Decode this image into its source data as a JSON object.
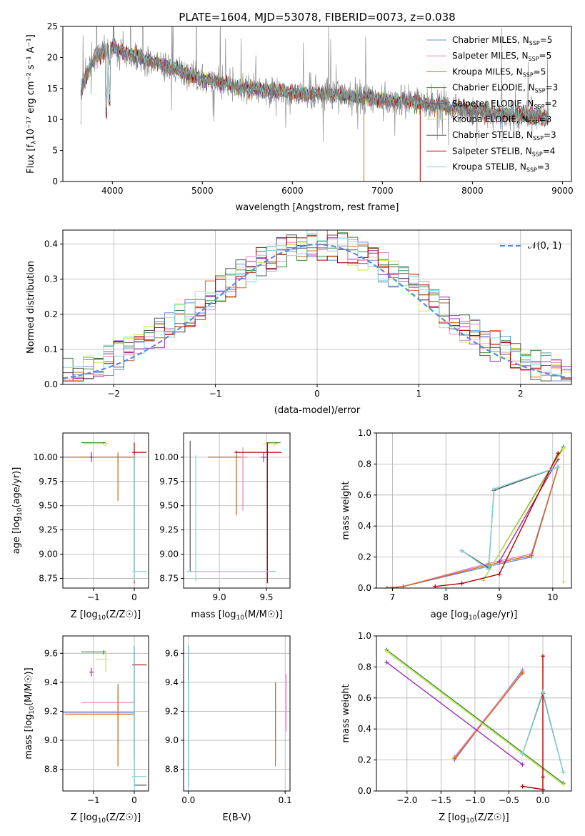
{
  "figure": {
    "title": "PLATE=1604, MJD=53078, FIBERID=0073, z=0.038"
  },
  "colors": {
    "chabrier_miles": "#6b8fd6",
    "salpeter_miles": "#e885c0",
    "kroupa_miles": "#d2691e",
    "chabrier_elodie": "#3a8a3a",
    "salpeter_elodie": "#9b2fae",
    "kroupa_elodie": "#c8e64a",
    "chabrier_stelib": "#555555",
    "salpeter_stelib": "#b00000",
    "kroupa_stelib": "#7fd6d6",
    "data": "#808080",
    "gaussian": "#5b8bd9"
  },
  "legend": {
    "items": [
      {
        "label": "Chabrier MILES, N",
        "sub": "SSP",
        "suffix": "=5",
        "color_key": "chabrier_miles"
      },
      {
        "label": "Salpeter MILES, N",
        "sub": "SSP",
        "suffix": "=5",
        "color_key": "salpeter_miles"
      },
      {
        "label": "Kroupa MILES, N",
        "sub": "SSP",
        "suffix": "=5",
        "color_key": "kroupa_miles"
      },
      {
        "label": "Chabrier ELODIE, N",
        "sub": "SSP",
        "suffix": "=3",
        "color_key": "chabrier_elodie"
      },
      {
        "label": "Salpeter ELODIE, N",
        "sub": "SSP",
        "suffix": "=2",
        "color_key": "salpeter_elodie"
      },
      {
        "label": "Kroupa ELODIE, N",
        "sub": "SSP",
        "suffix": "=3",
        "color_key": "kroupa_elodie"
      },
      {
        "label": "Chabrier STELIB, N",
        "sub": "SSP",
        "suffix": "=3",
        "color_key": "chabrier_stelib"
      },
      {
        "label": "Salpeter STELIB, N",
        "sub": "SSP",
        "suffix": "=4",
        "color_key": "salpeter_stelib"
      },
      {
        "label": "Kroupa STELIB, N",
        "sub": "SSP",
        "suffix": "=3",
        "color_key": "kroupa_stelib"
      }
    ],
    "gaussian_label": "𝒩(0, 1)"
  },
  "chart_data": [
    {
      "id": "spectrum",
      "type": "line",
      "xlabel": "wavelength [Angstrom, rest frame]",
      "ylabel_main": "Flux [f",
      "ylabel_sub": "λ",
      "ylabel_rest": "10⁻¹⁷ erg cm⁻² s⁻¹ A⁻¹]",
      "xlim": [
        3450,
        9100
      ],
      "ylim": [
        0,
        25
      ],
      "xticks": [
        "4000",
        "5000",
        "6000",
        "7000",
        "8000",
        "9000"
      ],
      "yticks": [
        "0",
        "5",
        "10",
        "15",
        "20",
        "25"
      ],
      "continuum": [
        [
          3650,
          14.5
        ],
        [
          3700,
          16.5
        ],
        [
          3800,
          20
        ],
        [
          3900,
          21
        ],
        [
          4000,
          21.5
        ],
        [
          4200,
          20.5
        ],
        [
          4500,
          19
        ],
        [
          5000,
          16.5
        ],
        [
          5500,
          15
        ],
        [
          6000,
          14.3
        ],
        [
          6500,
          14
        ],
        [
          7000,
          13.3
        ],
        [
          7500,
          12.5
        ],
        [
          8000,
          11.5
        ],
        [
          8500,
          10.8
        ],
        [
          8850,
          10.3
        ]
      ],
      "grid": false
    },
    {
      "id": "residuals",
      "type": "histogram",
      "xlabel": "(data-model)/error",
      "ylabel": "Normed distribution",
      "xlim": [
        -2.5,
        2.5
      ],
      "ylim": [
        0,
        0.44
      ],
      "xticks": [
        "−2",
        "−1",
        "0",
        "1",
        "2"
      ],
      "yticks": [
        "0.0",
        "0.1",
        "0.2",
        "0.3",
        "0.4"
      ],
      "bin_width": 0.1,
      "gaussian": {
        "mean": 0,
        "sigma": 1
      },
      "grid": true
    },
    {
      "id": "age_vs_Z",
      "type": "errorbar",
      "xlabel_main": "Z [log",
      "xlabel_sub": "10",
      "xlabel_rest": "(Z/Z☉)]",
      "ylabel_main": "age  [log",
      "ylabel_sub": "10",
      "ylabel_rest": "(age/yr)]",
      "xlim": [
        -1.75,
        0.35
      ],
      "ylim": [
        8.65,
        10.25
      ],
      "xticks": [
        "−1",
        "0"
      ],
      "yticks": [
        "8.75",
        "9.00",
        "9.25",
        "9.50",
        "9.75",
        "10.00"
      ],
      "points": [
        {
          "k": "chabrier_miles",
          "x": -0.4,
          "y": 10.0,
          "xerr": [
            1.35,
            0.4
          ],
          "yerr": [
            0.06,
            0.03
          ]
        },
        {
          "k": "salpeter_miles",
          "x": -1.05,
          "y": 10.0,
          "xerr": [
            0.3,
            1.1
          ],
          "yerr": [
            0.05,
            0.06
          ]
        },
        {
          "k": "kroupa_miles",
          "x": -0.4,
          "y": 10.0,
          "xerr": [
            1.3,
            0.4
          ],
          "yerr": [
            0.45,
            0.05
          ]
        },
        {
          "k": "chabrier_elodie",
          "x": -0.75,
          "y": 10.15,
          "xerr": [
            0.55,
            0.05
          ],
          "yerr": [
            0.02,
            0.01
          ]
        },
        {
          "k": "salpeter_elodie",
          "x": -1.05,
          "y": 10.0,
          "xerr": [
            0.05,
            0.05
          ],
          "yerr": [
            0.05,
            0.05
          ]
        },
        {
          "k": "kroupa_elodie",
          "x": -0.7,
          "y": 10.14,
          "xerr": [
            0.55,
            0.05
          ],
          "yerr": [
            0.03,
            0.03
          ]
        },
        {
          "k": "chabrier_stelib",
          "x": 0.0,
          "y": 8.82,
          "xerr": [
            0.0,
            0.3
          ],
          "yerr": [
            0.0,
            1.2
          ]
        },
        {
          "k": "salpeter_stelib",
          "x": 0.0,
          "y": 10.05,
          "xerr": [
            0.05,
            0.3
          ],
          "yerr": [
            1.35,
            0.1
          ]
        },
        {
          "k": "kroupa_stelib",
          "x": 0.0,
          "y": 8.82,
          "xerr": [
            0.05,
            0.3
          ],
          "yerr": [
            0.1,
            1.2
          ]
        }
      ]
    },
    {
      "id": "age_vs_mass",
      "type": "errorbar",
      "xlabel_main": "mass [log",
      "xlabel_sub": "10",
      "xlabel_rest": "(M/M☉)]",
      "xlim": [
        8.62,
        9.75
      ],
      "ylim": [
        8.65,
        10.25
      ],
      "xticks": [
        "9.0",
        "9.5"
      ],
      "yticks": [
        "8.75",
        "9.00",
        "9.25",
        "9.50",
        "9.75",
        "10.00"
      ],
      "points": [
        {
          "k": "chabrier_miles",
          "x": 9.18,
          "y": 10.0,
          "xerr": [
            0.3,
            0.1
          ],
          "yerr": [
            0.6,
            0.07
          ]
        },
        {
          "k": "salpeter_miles",
          "x": 9.25,
          "y": 10.0,
          "xerr": [
            0.1,
            0.05
          ],
          "yerr": [
            0.55,
            0.1
          ]
        },
        {
          "k": "kroupa_miles",
          "x": 9.18,
          "y": 10.0,
          "xerr": [
            0.3,
            0.05
          ],
          "yerr": [
            0.6,
            0.07
          ]
        },
        {
          "k": "chabrier_elodie",
          "x": 9.6,
          "y": 10.15,
          "xerr": [
            0.1,
            0.05
          ],
          "yerr": [
            0.02,
            0.01
          ]
        },
        {
          "k": "salpeter_elodie",
          "x": 9.47,
          "y": 10.0,
          "xerr": [
            0.03,
            0.03
          ],
          "yerr": [
            0.05,
            0.05
          ]
        },
        {
          "k": "kroupa_elodie",
          "x": 9.58,
          "y": 10.14,
          "xerr": [
            0.12,
            0.05
          ],
          "yerr": [
            0.03,
            0.03
          ]
        },
        {
          "k": "chabrier_stelib",
          "x": 8.69,
          "y": 8.82,
          "xerr": [
            0.0,
            0.9
          ],
          "yerr": [
            0.0,
            1.35
          ]
        },
        {
          "k": "salpeter_stelib",
          "x": 9.51,
          "y": 10.05,
          "xerr": [
            0.35,
            0.15
          ],
          "yerr": [
            1.35,
            0.1
          ]
        },
        {
          "k": "kroupa_stelib",
          "x": 8.75,
          "y": 8.82,
          "xerr": [
            0.1,
            0.85
          ],
          "yerr": [
            0.1,
            1.2
          ]
        }
      ]
    },
    {
      "id": "weight_vs_age",
      "type": "line",
      "xlabel_main": "age  [log",
      "xlabel_sub": "10",
      "xlabel_rest": "(age/yr)]",
      "ylabel": "mass weight",
      "xlim": [
        6.7,
        10.35
      ],
      "ylim": [
        0,
        1
      ],
      "xticks": [
        "7",
        "8",
        "9",
        "10"
      ],
      "yticks": [
        "0.0",
        "0.2",
        "0.4",
        "0.6",
        "0.8",
        "1.0"
      ],
      "series": [
        {
          "k": "chabrier_miles",
          "x": [
            6.9,
            7.2,
            8.8,
            9.6,
            10.1
          ],
          "y": [
            0.0,
            0.01,
            0.14,
            0.2,
            0.78
          ]
        },
        {
          "k": "salpeter_miles",
          "x": [
            6.9,
            7.2,
            8.8,
            9.6,
            10.1
          ],
          "y": [
            0.0,
            0.01,
            0.16,
            0.22,
            0.78
          ]
        },
        {
          "k": "kroupa_miles",
          "x": [
            6.9,
            7.2,
            8.8,
            9.6,
            10.1
          ],
          "y": [
            0.0,
            0.01,
            0.15,
            0.21,
            0.78
          ]
        },
        {
          "k": "chabrier_elodie",
          "x": [
            8.7,
            10.2
          ],
          "y": [
            0.05,
            0.91
          ]
        },
        {
          "k": "salpeter_elodie",
          "x": [
            9.0,
            10.1
          ],
          "y": [
            0.17,
            0.83
          ]
        },
        {
          "k": "kroupa_elodie",
          "x": [
            8.7,
            10.2,
            10.2
          ],
          "y": [
            0.05,
            0.9,
            0.04
          ]
        },
        {
          "k": "chabrier_stelib",
          "x": [
            8.3,
            8.8,
            8.9,
            10.1
          ],
          "y": [
            0.24,
            0.13,
            0.63,
            0.78
          ]
        },
        {
          "k": "salpeter_stelib",
          "x": [
            7.8,
            8.3,
            9.0,
            10.1
          ],
          "y": [
            0.01,
            0.03,
            0.09,
            0.87
          ]
        },
        {
          "k": "kroupa_stelib",
          "x": [
            8.3,
            8.8,
            8.9,
            10.1
          ],
          "y": [
            0.24,
            0.12,
            0.64,
            0.78
          ]
        }
      ]
    },
    {
      "id": "mass_vs_Z",
      "type": "errorbar",
      "xlabel_main": "Z [log",
      "xlabel_sub": "10",
      "xlabel_rest": "(Z/Z☉)]",
      "ylabel_main": "mass [log",
      "ylabel_sub": "10",
      "ylabel_rest": "(M/M☉)]",
      "xlim": [
        -1.75,
        0.35
      ],
      "ylim": [
        8.65,
        9.72
      ],
      "xticks": [
        "−1",
        "0"
      ],
      "yticks": [
        "8.8",
        "9.0",
        "9.2",
        "9.4",
        "9.6"
      ],
      "points": [
        {
          "k": "chabrier_miles",
          "x": -0.4,
          "y": 9.19,
          "xerr": [
            1.35,
            0.4
          ],
          "yerr": [
            0.2,
            0.2
          ]
        },
        {
          "k": "salpeter_miles",
          "x": -0.4,
          "y": 9.26,
          "xerr": [
            0.9,
            0.4
          ],
          "yerr": [
            0.12,
            0.05
          ]
        },
        {
          "k": "kroupa_miles",
          "x": -0.4,
          "y": 9.18,
          "xerr": [
            1.3,
            0.4
          ],
          "yerr": [
            0.36,
            0.2
          ]
        },
        {
          "k": "chabrier_elodie",
          "x": -0.75,
          "y": 9.61,
          "xerr": [
            0.55,
            0.05
          ],
          "yerr": [
            0.02,
            0.01
          ]
        },
        {
          "k": "salpeter_elodie",
          "x": -1.05,
          "y": 9.47,
          "xerr": [
            0.05,
            0.05
          ],
          "yerr": [
            0.03,
            0.03
          ]
        },
        {
          "k": "kroupa_elodie",
          "x": -0.7,
          "y": 9.56,
          "xerr": [
            0.25,
            0.05
          ],
          "yerr": [
            0.09,
            0.06
          ]
        },
        {
          "k": "chabrier_stelib",
          "x": 0.0,
          "y": 8.69,
          "xerr": [
            0.0,
            0.3
          ],
          "yerr": [
            0.0,
            0.95
          ]
        },
        {
          "k": "salpeter_stelib",
          "x": 0.0,
          "y": 9.52,
          "xerr": [
            0.05,
            0.3
          ],
          "yerr": [
            0.65,
            0.13
          ]
        },
        {
          "k": "kroupa_stelib",
          "x": 0.0,
          "y": 8.75,
          "xerr": [
            0.05,
            0.3
          ],
          "yerr": [
            0.1,
            0.9
          ]
        }
      ]
    },
    {
      "id": "mass_vs_ebv",
      "type": "errorbar",
      "xlabel": "E(B-V)",
      "xlim": [
        -0.005,
        0.105
      ],
      "ylim": [
        8.65,
        9.72
      ],
      "xticks": [
        "0.0",
        "0.1"
      ],
      "yticks": [
        "8.8",
        "9.0",
        "9.2",
        "9.4",
        "9.6"
      ],
      "points": [
        {
          "k": "chabrier_miles",
          "x": 0.09,
          "y": 9.19,
          "xerr": [
            0,
            0
          ],
          "yerr": [
            0.2,
            0.2
          ]
        },
        {
          "k": "salpeter_miles",
          "x": 0.101,
          "y": 9.26,
          "xerr": [
            0,
            0
          ],
          "yerr": [
            0.2,
            0.2
          ]
        },
        {
          "k": "kroupa_miles",
          "x": 0.09,
          "y": 9.18,
          "xerr": [
            0,
            0
          ],
          "yerr": [
            0.36,
            0.22
          ]
        },
        {
          "k": "chabrier_elodie",
          "x": 0.0,
          "y": 9.61,
          "xerr": [
            0,
            0
          ],
          "yerr": [
            0.02,
            0.01
          ]
        },
        {
          "k": "salpeter_elodie",
          "x": 0.0,
          "y": 9.47,
          "xerr": [
            0,
            0
          ],
          "yerr": [
            0.03,
            0.03
          ]
        },
        {
          "k": "kroupa_elodie",
          "x": 0.0,
          "y": 9.56,
          "xerr": [
            0,
            0
          ],
          "yerr": [
            0.09,
            0.06
          ]
        },
        {
          "k": "chabrier_stelib",
          "x": 0.0,
          "y": 8.69,
          "xerr": [
            0,
            0
          ],
          "yerr": [
            0.0,
            0.95
          ]
        },
        {
          "k": "salpeter_stelib",
          "x": 0.0,
          "y": 9.52,
          "xerr": [
            0,
            0
          ],
          "yerr": [
            0.1,
            0.13
          ]
        },
        {
          "k": "kroupa_stelib",
          "x": 0.0,
          "y": 8.75,
          "xerr": [
            0,
            0
          ],
          "yerr": [
            0.1,
            0.9
          ]
        }
      ]
    },
    {
      "id": "weight_vs_Z",
      "type": "line",
      "xlabel_main": "Z [log",
      "xlabel_sub": "10",
      "xlabel_rest": "(Z/Z☉)]",
      "ylabel": "mass weight",
      "xlim": [
        -2.45,
        0.42
      ],
      "ylim": [
        0,
        1
      ],
      "xticks": [
        "−2.0",
        "−1.5",
        "−1.0",
        "−0.5",
        "0.0"
      ],
      "yticks": [
        "0.0",
        "0.2",
        "0.4",
        "0.6",
        "0.8",
        "1.0"
      ],
      "series": [
        {
          "k": "chabrier_miles",
          "x": [
            -1.3,
            -0.3
          ],
          "y": [
            0.2,
            0.78
          ]
        },
        {
          "k": "salpeter_miles",
          "x": [
            -1.3,
            -0.3
          ],
          "y": [
            0.22,
            0.77
          ]
        },
        {
          "k": "kroupa_miles",
          "x": [
            -1.3,
            -0.3
          ],
          "y": [
            0.21,
            0.76
          ]
        },
        {
          "k": "chabrier_elodie",
          "x": [
            -2.3,
            0.3
          ],
          "y": [
            0.91,
            0.05
          ]
        },
        {
          "k": "salpeter_elodie",
          "x": [
            -2.3,
            -0.3
          ],
          "y": [
            0.83,
            0.17
          ]
        },
        {
          "k": "kroupa_elodie",
          "x": [
            -2.3,
            0.3
          ],
          "y": [
            0.9,
            0.04
          ]
        },
        {
          "k": "chabrier_stelib",
          "x": [
            -0.3,
            0.0,
            0.3
          ],
          "y": [
            0.24,
            0.63,
            0.12
          ]
        },
        {
          "k": "salpeter_stelib",
          "x": [
            -0.3,
            0.0,
            0.0,
            0.0
          ],
          "y": [
            0.03,
            0.01,
            0.87,
            0.09
          ]
        },
        {
          "k": "kroupa_stelib",
          "x": [
            -0.3,
            0.0,
            0.3
          ],
          "y": [
            0.24,
            0.64,
            0.12
          ]
        }
      ]
    }
  ]
}
